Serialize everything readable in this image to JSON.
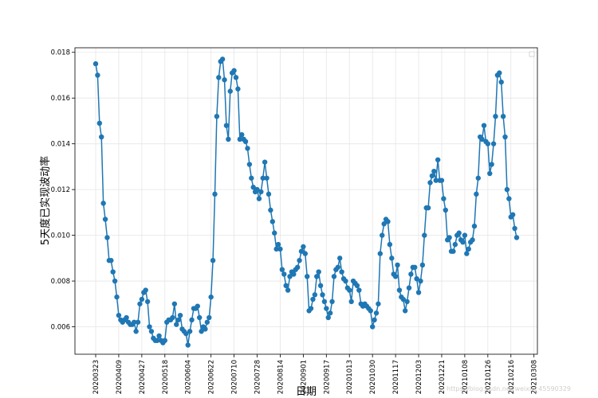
{
  "chart_data": {
    "type": "line",
    "title": "",
    "xlabel": "日期",
    "ylabel": "5天度已实现波动率",
    "ylim": [
      0.0048,
      0.0182
    ],
    "yticks": [
      0.006,
      0.008,
      0.01,
      0.012,
      0.014,
      0.016,
      0.018
    ],
    "ytick_labels": [
      "0.006",
      "0.008",
      "0.010",
      "0.012",
      "0.014",
      "0.016",
      "0.018"
    ],
    "xtick_labels": [
      "20200323",
      "20200409",
      "20200427",
      "20200518",
      "20200604",
      "20200622",
      "20200710",
      "20200728",
      "20200814",
      "20200901",
      "20200917",
      "20201013",
      "20201030",
      "20201117",
      "20201203",
      "20201221",
      "20210108",
      "20210126",
      "20210216",
      "20210308"
    ],
    "x_tick_step": 12,
    "grid": true,
    "legend": "top-right",
    "series": [
      {
        "name": "",
        "color": "#1f77b4",
        "values": [
          0.0175,
          0.017,
          0.0149,
          0.0143,
          0.0114,
          0.0107,
          0.0099,
          0.0089,
          0.0089,
          0.0084,
          0.008,
          0.0073,
          0.0065,
          0.0063,
          0.0062,
          0.0063,
          0.0064,
          0.0062,
          0.0061,
          0.0061,
          0.0062,
          0.0058,
          0.0062,
          0.007,
          0.0072,
          0.0075,
          0.0076,
          0.0071,
          0.006,
          0.0058,
          0.0055,
          0.0054,
          0.0054,
          0.0056,
          0.0054,
          0.0053,
          0.0054,
          0.0062,
          0.0063,
          0.0063,
          0.0064,
          0.007,
          0.0061,
          0.0063,
          0.0065,
          0.0059,
          0.0058,
          0.0057,
          0.0052,
          0.0058,
          0.0063,
          0.0068,
          0.0068,
          0.0069,
          0.0064,
          0.0058,
          0.006,
          0.0059,
          0.0062,
          0.0064,
          0.0073,
          0.0089,
          0.0118,
          0.0152,
          0.0169,
          0.0176,
          0.0177,
          0.0168,
          0.0148,
          0.0142,
          0.0163,
          0.0171,
          0.0172,
          0.0169,
          0.0164,
          0.0142,
          0.0144,
          0.0142,
          0.0141,
          0.0138,
          0.0131,
          0.0125,
          0.0121,
          0.0119,
          0.012,
          0.0116,
          0.0119,
          0.0125,
          0.0132,
          0.0125,
          0.0118,
          0.0111,
          0.0106,
          0.0101,
          0.0094,
          0.0096,
          0.0094,
          0.0085,
          0.0083,
          0.0078,
          0.0076,
          0.0082,
          0.0084,
          0.0083,
          0.0085,
          0.0086,
          0.0089,
          0.0093,
          0.0095,
          0.0092,
          0.0082,
          0.0067,
          0.0068,
          0.0072,
          0.0074,
          0.0082,
          0.0084,
          0.0078,
          0.0074,
          0.0071,
          0.0068,
          0.0064,
          0.0066,
          0.0071,
          0.0082,
          0.0085,
          0.0086,
          0.009,
          0.0084,
          0.0081,
          0.008,
          0.0077,
          0.0076,
          0.0071,
          0.008,
          0.0079,
          0.0078,
          0.0076,
          0.007,
          0.0069,
          0.007,
          0.0069,
          0.0068,
          0.0067,
          0.006,
          0.0063,
          0.0066,
          0.007,
          0.0092,
          0.01,
          0.0105,
          0.0107,
          0.0106,
          0.0096,
          0.009,
          0.0083,
          0.0082,
          0.0087,
          0.0076,
          0.0073,
          0.0072,
          0.0067,
          0.0071,
          0.0077,
          0.0083,
          0.0086,
          0.0086,
          0.0081,
          0.0075,
          0.008,
          0.0087,
          0.01,
          0.0112,
          0.0112,
          0.0123,
          0.0126,
          0.0128,
          0.0124,
          0.0133,
          0.0124,
          0.0124,
          0.0116,
          0.0111,
          0.0098,
          0.0099,
          0.0093,
          0.0093,
          0.0096,
          0.01,
          0.0101,
          0.0098,
          0.0097,
          0.01,
          0.0092,
          0.0094,
          0.0097,
          0.0098,
          0.0104,
          0.0118,
          0.0125,
          0.0143,
          0.0142,
          0.0148,
          0.0141,
          0.014,
          0.0127,
          0.0131,
          0.014,
          0.0152,
          0.017,
          0.0171,
          0.0167,
          0.0152,
          0.0143,
          0.012,
          0.0116,
          0.0108,
          0.0109,
          0.0103,
          0.0099
        ]
      }
    ]
  },
  "watermark": "https://blog.csdn.net/weixin_45590329"
}
